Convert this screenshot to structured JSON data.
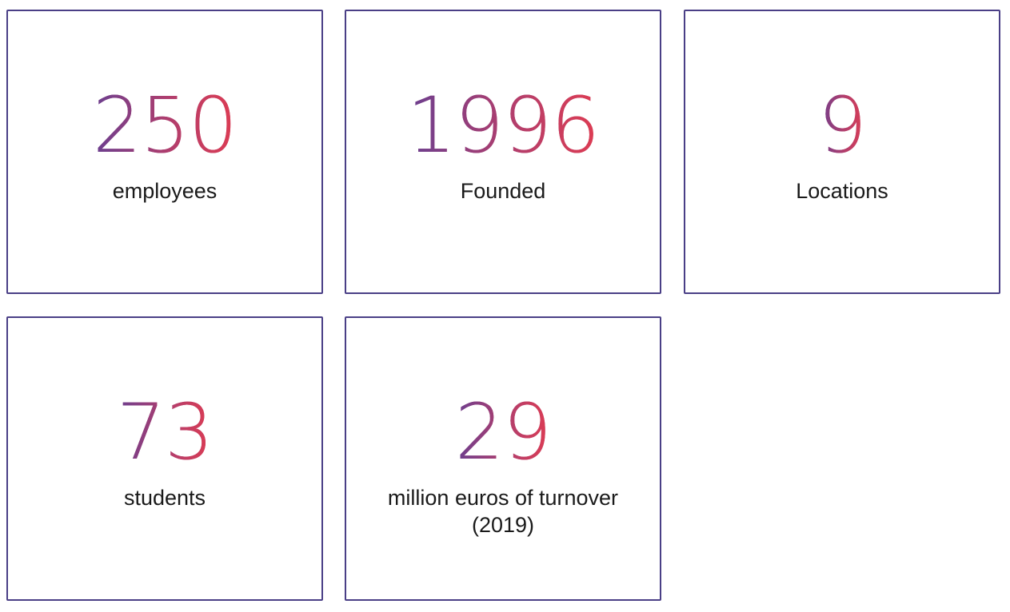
{
  "stats": [
    {
      "value": "250",
      "label": "employees"
    },
    {
      "value": "1996",
      "label": "Founded"
    },
    {
      "value": "9",
      "label": "Locations"
    },
    {
      "value": "73",
      "label": "students"
    },
    {
      "value": "29",
      "label": "million euros of turnover (2019)"
    }
  ],
  "colors": {
    "border": "#4a3f86",
    "gradient_start": "#6a3f90",
    "gradient_end": "#de3c52",
    "label_text": "#1a1a1a"
  }
}
